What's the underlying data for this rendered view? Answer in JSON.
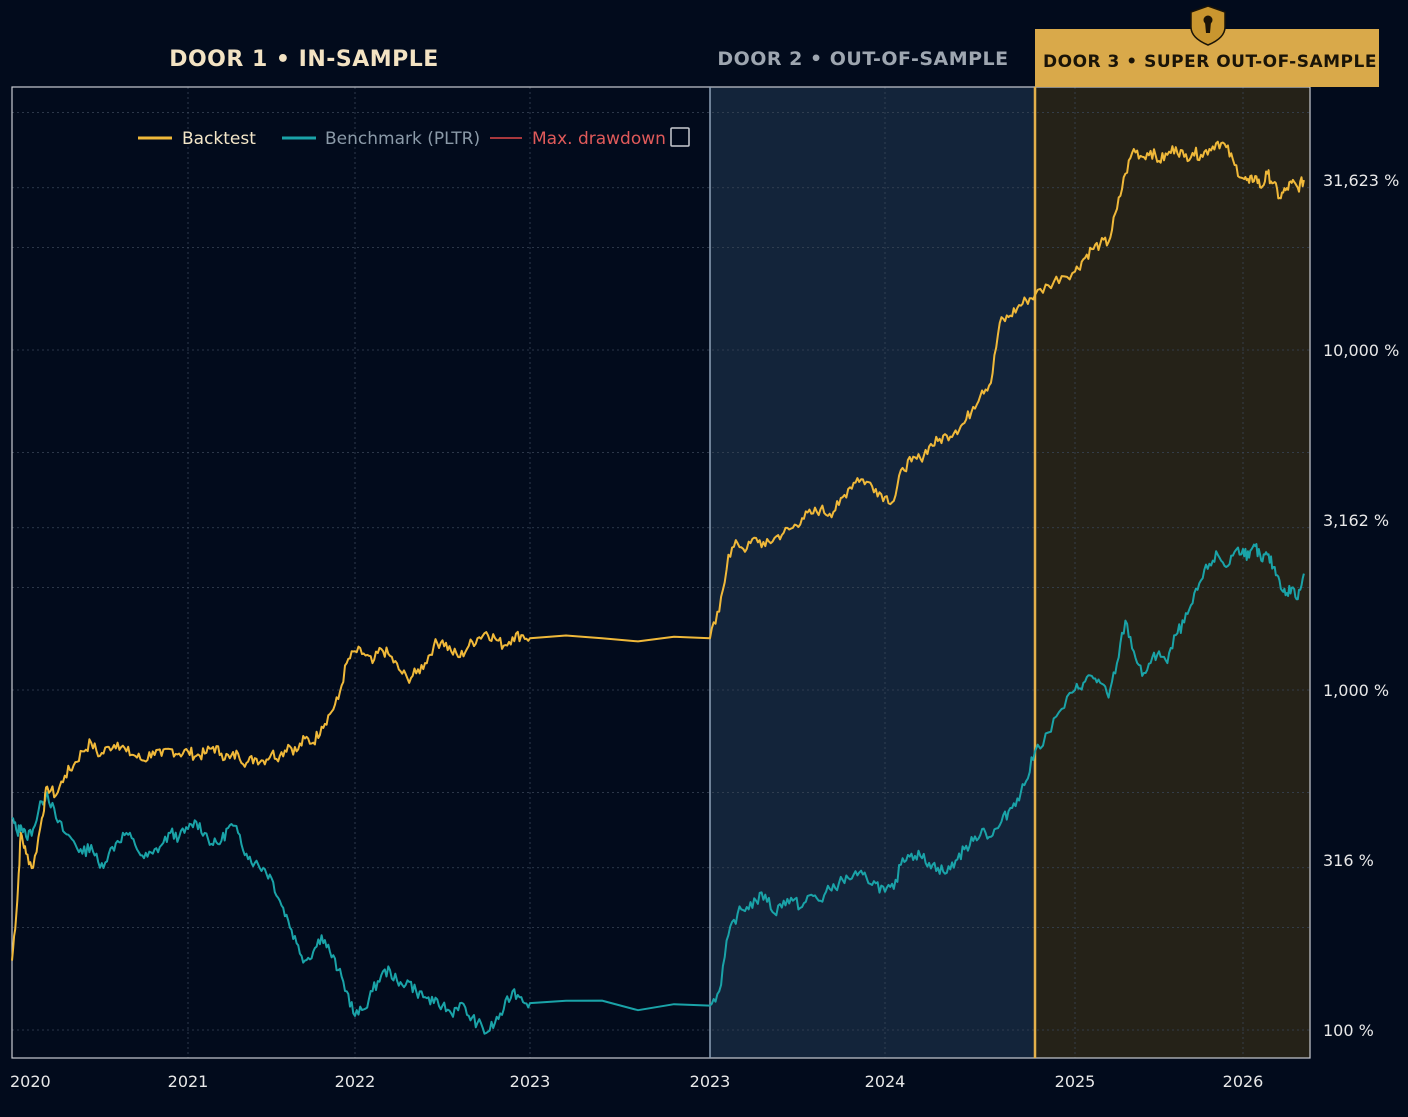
{
  "doors": [
    {
      "label": "DOOR 1 • IN-SAMPLE"
    },
    {
      "label": "DOOR 2 • OUT-OF-SAMPLE"
    },
    {
      "label": "DOOR 3 • SUPER OUT-OF-SAMPLE"
    }
  ],
  "legend": {
    "backtest": "Backtest",
    "benchmark": "Benchmark (PLTR)",
    "drawdown": "Max. drawdown"
  },
  "colors": {
    "background": "#020b1c",
    "backtest": "#f0b93a",
    "benchmark": "#1aa3a8",
    "drawdown": "#e04848",
    "door2_fill": "#13243a",
    "door3_fill": "#252218",
    "gold": "#e3b04b",
    "gold_badge": "#d9a94a"
  },
  "chart_data": {
    "type": "line",
    "yscale": "log",
    "ylim": [
      80,
      55000
    ],
    "y_ticks": [
      {
        "value": 100,
        "label": "100 %"
      },
      {
        "value": 316,
        "label": "316 %"
      },
      {
        "value": 1000,
        "label": "1,000 %"
      },
      {
        "value": 3162,
        "label": "3,162 %"
      },
      {
        "value": 10000,
        "label": "10,000 %"
      },
      {
        "value": 31623,
        "label": "31,623 %"
      }
    ],
    "x_ticks": [
      {
        "value": 2020.0,
        "label": "2020"
      },
      {
        "value": 2021.0,
        "label": "2021"
      },
      {
        "value": 2022.0,
        "label": "2022"
      },
      {
        "value": 2023.0,
        "label": "2023"
      },
      {
        "value": 2023.05,
        "label": "2023"
      },
      {
        "value": 2024.0,
        "label": "2024"
      },
      {
        "value": 2025.0,
        "label": "2025"
      },
      {
        "value": 2026.0,
        "label": "2026"
      }
    ],
    "xlim": [
      2020.0,
      2026.55
    ],
    "door_boundaries": [
      2023.0,
      2024.85
    ],
    "grid": true,
    "legend_position": "top-left",
    "series": [
      {
        "name": "Backtest",
        "points": [
          [
            2020.0,
            160
          ],
          [
            2020.03,
            240
          ],
          [
            2020.05,
            380
          ],
          [
            2020.08,
            330
          ],
          [
            2020.12,
            300
          ],
          [
            2020.17,
            420
          ],
          [
            2020.2,
            520
          ],
          [
            2020.25,
            490
          ],
          [
            2020.3,
            560
          ],
          [
            2020.35,
            600
          ],
          [
            2020.4,
            660
          ],
          [
            2020.45,
            700
          ],
          [
            2020.5,
            640
          ],
          [
            2020.55,
            680
          ],
          [
            2020.6,
            700
          ],
          [
            2020.65,
            660
          ],
          [
            2020.7,
            640
          ],
          [
            2020.75,
            620
          ],
          [
            2020.8,
            660
          ],
          [
            2020.85,
            640
          ],
          [
            2020.9,
            670
          ],
          [
            2020.95,
            650
          ],
          [
            2021.0,
            660
          ],
          [
            2021.05,
            640
          ],
          [
            2021.1,
            650
          ],
          [
            2021.15,
            680
          ],
          [
            2021.2,
            650
          ],
          [
            2021.25,
            630
          ],
          [
            2021.3,
            650
          ],
          [
            2021.35,
            610
          ],
          [
            2021.4,
            630
          ],
          [
            2021.45,
            620
          ],
          [
            2021.5,
            650
          ],
          [
            2021.55,
            640
          ],
          [
            2021.6,
            690
          ],
          [
            2021.65,
            660
          ],
          [
            2021.7,
            720
          ],
          [
            2021.75,
            700
          ],
          [
            2021.8,
            780
          ],
          [
            2021.85,
            850
          ],
          [
            2021.9,
            940
          ],
          [
            2021.95,
            1200
          ],
          [
            2022.0,
            1300
          ],
          [
            2022.05,
            1280
          ],
          [
            2022.1,
            1200
          ],
          [
            2022.15,
            1320
          ],
          [
            2022.2,
            1260
          ],
          [
            2022.25,
            1150
          ],
          [
            2022.3,
            1080
          ],
          [
            2022.35,
            1120
          ],
          [
            2022.4,
            1200
          ],
          [
            2022.45,
            1350
          ],
          [
            2022.5,
            1400
          ],
          [
            2022.55,
            1300
          ],
          [
            2022.6,
            1250
          ],
          [
            2022.65,
            1350
          ],
          [
            2022.7,
            1420
          ],
          [
            2022.75,
            1480
          ],
          [
            2022.8,
            1420
          ],
          [
            2022.85,
            1350
          ],
          [
            2022.9,
            1430
          ],
          [
            2022.95,
            1450
          ],
          [
            2023.0,
            1420
          ],
          [
            2023.05,
            1420
          ],
          [
            2023.1,
            1700
          ],
          [
            2023.15,
            2500
          ],
          [
            2023.2,
            2700
          ],
          [
            2023.25,
            2600
          ],
          [
            2023.3,
            2800
          ],
          [
            2023.35,
            2650
          ],
          [
            2023.4,
            2800
          ],
          [
            2023.45,
            2900
          ],
          [
            2023.5,
            3000
          ],
          [
            2023.55,
            3200
          ],
          [
            2023.6,
            3300
          ],
          [
            2023.65,
            3400
          ],
          [
            2023.7,
            3300
          ],
          [
            2023.75,
            3500
          ],
          [
            2023.8,
            3900
          ],
          [
            2023.85,
            4200
          ],
          [
            2023.9,
            4100
          ],
          [
            2023.95,
            3900
          ],
          [
            2024.0,
            3700
          ],
          [
            2024.05,
            3600
          ],
          [
            2024.1,
            4500
          ],
          [
            2024.15,
            4700
          ],
          [
            2024.2,
            4800
          ],
          [
            2024.25,
            5200
          ],
          [
            2024.3,
            5400
          ],
          [
            2024.35,
            5600
          ],
          [
            2024.4,
            5800
          ],
          [
            2024.45,
            6100
          ],
          [
            2024.5,
            6800
          ],
          [
            2024.55,
            7600
          ],
          [
            2024.6,
            8000
          ],
          [
            2024.65,
            12000
          ],
          [
            2024.7,
            12500
          ],
          [
            2024.75,
            13300
          ],
          [
            2024.8,
            14000
          ],
          [
            2024.85,
            14500
          ],
          [
            2024.9,
            15500
          ],
          [
            2024.95,
            16500
          ],
          [
            2025.0,
            17000
          ],
          [
            2025.05,
            18500
          ],
          [
            2025.1,
            19800
          ],
          [
            2025.15,
            20500
          ],
          [
            2025.2,
            20800
          ],
          [
            2025.25,
            26000
          ],
          [
            2025.3,
            33000
          ],
          [
            2025.35,
            39000
          ],
          [
            2025.4,
            37000
          ],
          [
            2025.45,
            38500
          ],
          [
            2025.5,
            36000
          ],
          [
            2025.55,
            37500
          ],
          [
            2025.6,
            39500
          ],
          [
            2025.65,
            37000
          ],
          [
            2025.7,
            38000
          ],
          [
            2025.75,
            37500
          ],
          [
            2025.8,
            39000
          ],
          [
            2025.85,
            41000
          ],
          [
            2025.9,
            39500
          ],
          [
            2025.95,
            35000
          ],
          [
            2026.0,
            32000
          ],
          [
            2026.05,
            31000
          ],
          [
            2026.1,
            32500
          ],
          [
            2026.15,
            30000
          ],
          [
            2026.2,
            33000
          ],
          [
            2026.25,
            31000
          ],
          [
            2026.3,
            28000
          ],
          [
            2026.35,
            29500
          ],
          [
            2026.4,
            31000
          ],
          [
            2026.45,
            30000
          ],
          [
            2026.5,
            31600
          ]
        ]
      },
      {
        "name": "Benchmark (PLTR)",
        "points": [
          [
            2020.0,
            420
          ],
          [
            2020.03,
            380
          ],
          [
            2020.05,
            400
          ],
          [
            2020.08,
            370
          ],
          [
            2020.12,
            390
          ],
          [
            2020.17,
            470
          ],
          [
            2020.2,
            500
          ],
          [
            2020.25,
            420
          ],
          [
            2020.3,
            380
          ],
          [
            2020.35,
            360
          ],
          [
            2020.4,
            330
          ],
          [
            2020.45,
            350
          ],
          [
            2020.5,
            300
          ],
          [
            2020.55,
            330
          ],
          [
            2020.6,
            360
          ],
          [
            2020.65,
            380
          ],
          [
            2020.7,
            350
          ],
          [
            2020.75,
            320
          ],
          [
            2020.8,
            330
          ],
          [
            2020.85,
            350
          ],
          [
            2020.9,
            380
          ],
          [
            2020.95,
            370
          ],
          [
            2021.0,
            390
          ],
          [
            2021.05,
            410
          ],
          [
            2021.1,
            380
          ],
          [
            2021.15,
            350
          ],
          [
            2021.2,
            360
          ],
          [
            2021.25,
            400
          ],
          [
            2021.3,
            380
          ],
          [
            2021.35,
            330
          ],
          [
            2021.4,
            310
          ],
          [
            2021.45,
            300
          ],
          [
            2021.5,
            280
          ],
          [
            2021.55,
            240
          ],
          [
            2021.6,
            210
          ],
          [
            2021.65,
            180
          ],
          [
            2021.7,
            160
          ],
          [
            2021.75,
            170
          ],
          [
            2021.8,
            190
          ],
          [
            2021.85,
            170
          ],
          [
            2021.9,
            150
          ],
          [
            2021.95,
            130
          ],
          [
            2022.0,
            110
          ],
          [
            2022.05,
            115
          ],
          [
            2022.1,
            130
          ],
          [
            2022.15,
            145
          ],
          [
            2022.2,
            150
          ],
          [
            2022.25,
            135
          ],
          [
            2022.3,
            140
          ],
          [
            2022.35,
            130
          ],
          [
            2022.4,
            125
          ],
          [
            2022.45,
            120
          ],
          [
            2022.5,
            118
          ],
          [
            2022.55,
            112
          ],
          [
            2022.6,
            120
          ],
          [
            2022.65,
            110
          ],
          [
            2022.7,
            105
          ],
          [
            2022.75,
            98
          ],
          [
            2022.8,
            105
          ],
          [
            2022.85,
            115
          ],
          [
            2022.9,
            130
          ],
          [
            2022.95,
            125
          ],
          [
            2023.0,
            120
          ],
          [
            2023.05,
            118
          ],
          [
            2023.1,
            130
          ],
          [
            2023.15,
            190
          ],
          [
            2023.2,
            220
          ],
          [
            2023.25,
            230
          ],
          [
            2023.3,
            240
          ],
          [
            2023.35,
            250
          ],
          [
            2023.4,
            220
          ],
          [
            2023.45,
            240
          ],
          [
            2023.5,
            240
          ],
          [
            2023.55,
            230
          ],
          [
            2023.6,
            250
          ],
          [
            2023.65,
            240
          ],
          [
            2023.7,
            260
          ],
          [
            2023.75,
            270
          ],
          [
            2023.8,
            280
          ],
          [
            2023.85,
            285
          ],
          [
            2023.9,
            280
          ],
          [
            2023.95,
            270
          ],
          [
            2024.0,
            255
          ],
          [
            2024.05,
            260
          ],
          [
            2024.1,
            320
          ],
          [
            2024.15,
            330
          ],
          [
            2024.2,
            325
          ],
          [
            2024.25,
            310
          ],
          [
            2024.3,
            300
          ],
          [
            2024.35,
            290
          ],
          [
            2024.4,
            315
          ],
          [
            2024.45,
            340
          ],
          [
            2024.5,
            360
          ],
          [
            2024.55,
            390
          ],
          [
            2024.6,
            370
          ],
          [
            2024.65,
            400
          ],
          [
            2024.7,
            440
          ],
          [
            2024.75,
            480
          ],
          [
            2024.8,
            540
          ],
          [
            2024.85,
            660
          ],
          [
            2024.9,
            750
          ],
          [
            2024.95,
            880
          ],
          [
            2025.0,
            1000
          ],
          [
            2025.05,
            1050
          ],
          [
            2025.1,
            1100
          ],
          [
            2025.15,
            1050
          ],
          [
            2025.2,
            950
          ],
          [
            2025.25,
            1200
          ],
          [
            2025.3,
            1600
          ],
          [
            2025.35,
            1300
          ],
          [
            2025.4,
            1100
          ],
          [
            2025.45,
            1200
          ],
          [
            2025.5,
            1300
          ],
          [
            2025.55,
            1200
          ],
          [
            2025.6,
            1450
          ],
          [
            2025.65,
            1580
          ],
          [
            2025.7,
            1800
          ],
          [
            2025.75,
            2100
          ],
          [
            2025.8,
            2350
          ],
          [
            2025.85,
            2500
          ],
          [
            2025.9,
            2300
          ],
          [
            2025.95,
            2550
          ],
          [
            2026.0,
            2600
          ],
          [
            2026.05,
            2450
          ],
          [
            2026.1,
            2650
          ],
          [
            2026.15,
            2400
          ],
          [
            2026.2,
            2500
          ],
          [
            2026.25,
            2300
          ],
          [
            2026.3,
            2100
          ],
          [
            2026.35,
            1900
          ],
          [
            2026.4,
            2000
          ],
          [
            2026.45,
            1850
          ],
          [
            2026.5,
            2200
          ]
        ]
      }
    ]
  }
}
